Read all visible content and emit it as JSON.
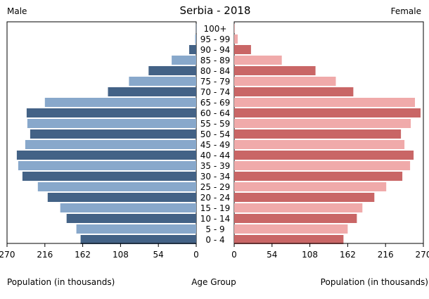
{
  "chart_data": {
    "type": "bar",
    "title": "Serbia - 2018",
    "left_label": "Male",
    "right_label": "Female",
    "center_label": "Age Group",
    "left_axis_label": "Population (in thousands)",
    "right_axis_label": "Population (in thousands)",
    "xlim": [
      0,
      270
    ],
    "ticks": [
      0,
      54,
      108,
      162,
      216,
      270
    ],
    "categories": [
      "100+",
      "95 - 99",
      "90 - 94",
      "85 - 89",
      "80 - 84",
      "75 - 79",
      "70 - 74",
      "65 - 69",
      "60 - 64",
      "55 - 59",
      "50 - 54",
      "45 - 49",
      "40 - 44",
      "35 - 39",
      "30 - 34",
      "25 - 29",
      "20 - 24",
      "15 - 19",
      "10 - 14",
      "5 - 9",
      "0 - 4"
    ],
    "series": [
      {
        "name": "Male",
        "values": [
          0.2,
          1.5,
          10,
          35,
          68,
          96,
          126,
          216,
          242,
          241,
          237,
          244,
          256,
          254,
          248,
          226,
          212,
          194,
          185,
          171,
          165
        ]
      },
      {
        "name": "Female",
        "values": [
          0.3,
          5,
          24,
          68,
          116,
          145,
          170,
          258,
          266,
          252,
          238,
          243,
          256,
          251,
          240,
          217,
          200,
          183,
          175,
          162,
          156
        ]
      }
    ],
    "colors": {
      "male_dark": "#436286",
      "male_light": "#88a8cb",
      "female_dark": "#c96666",
      "female_light": "#f0aaaa"
    }
  }
}
